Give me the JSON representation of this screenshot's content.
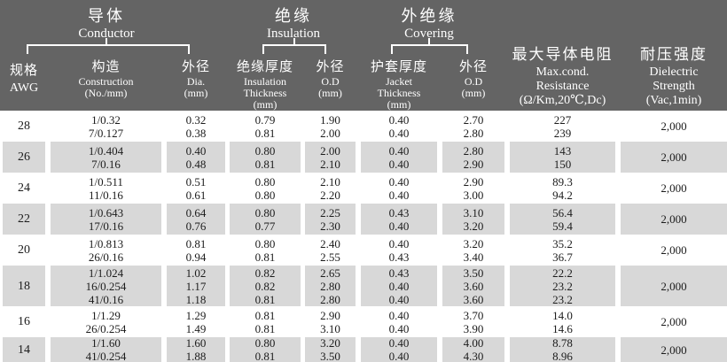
{
  "colors": {
    "header_bg": "#646464",
    "stripe_bg": "#d8d8d8",
    "header_text": "#ffffff",
    "body_text": "#1c1c1c"
  },
  "table": {
    "groups": [
      {
        "zh": "导体",
        "en": "Conductor"
      },
      {
        "zh": "绝缘",
        "en": "Insulation"
      },
      {
        "zh": "外绝缘",
        "en": "Covering"
      }
    ],
    "columns": [
      {
        "zh": "规格",
        "en": "AWG"
      },
      {
        "zh": "构造",
        "en": "Construction",
        "unit": "(No./mm)"
      },
      {
        "zh": "外径",
        "en": "Dia.",
        "unit": "(mm)"
      },
      {
        "zh": "绝缘厚度",
        "en": "Insulation",
        "en2": "Thickness",
        "unit": "(mm)"
      },
      {
        "zh": "外径",
        "en": "O.D",
        "unit": "(mm)"
      },
      {
        "zh": "护套厚度",
        "en": "Jacket",
        "en2": "Thickness",
        "unit": "(mm)"
      },
      {
        "zh": "外径",
        "en": "O.D",
        "unit": "(mm)"
      },
      {
        "zh": "最大导体电阻",
        "en": "Max.cond.",
        "en2": "Resistance",
        "unit": "(Ω/Km,20℃,Dc)"
      },
      {
        "zh": "耐压强度",
        "en": "Dielectric",
        "en2": "Strength",
        "unit": "(Vac,1min)"
      }
    ],
    "rows": [
      {
        "awg": "28",
        "construction": [
          "1/0.32",
          "7/0.127"
        ],
        "dia": [
          "0.32",
          "0.38"
        ],
        "ins_thickness": [
          "0.79",
          "0.81"
        ],
        "ins_od": [
          "1.90",
          "2.00"
        ],
        "jacket_thickness": [
          "0.40",
          "0.40"
        ],
        "jacket_od": [
          "2.70",
          "2.80"
        ],
        "resistance": [
          "227",
          "239"
        ],
        "dielectric": "2,000"
      },
      {
        "awg": "26",
        "construction": [
          "1/0.404",
          "7/0.16"
        ],
        "dia": [
          "0.40",
          "0.48"
        ],
        "ins_thickness": [
          "0.80",
          "0.81"
        ],
        "ins_od": [
          "2.00",
          "2.10"
        ],
        "jacket_thickness": [
          "0.40",
          "0.40"
        ],
        "jacket_od": [
          "2.80",
          "2.90"
        ],
        "resistance": [
          "143",
          "150"
        ],
        "dielectric": "2,000"
      },
      {
        "awg": "24",
        "construction": [
          "1/0.511",
          "11/0.16"
        ],
        "dia": [
          "0.51",
          "0.61"
        ],
        "ins_thickness": [
          "0.80",
          "0.80"
        ],
        "ins_od": [
          "2.10",
          "2.20"
        ],
        "jacket_thickness": [
          "0.40",
          "0.40"
        ],
        "jacket_od": [
          "2.90",
          "3.00"
        ],
        "resistance": [
          "89.3",
          "94.2"
        ],
        "dielectric": "2,000"
      },
      {
        "awg": "22",
        "construction": [
          "1/0.643",
          "17/0.16"
        ],
        "dia": [
          "0.64",
          "0.76"
        ],
        "ins_thickness": [
          "0.80",
          "0.77"
        ],
        "ins_od": [
          "2.25",
          "2.30"
        ],
        "jacket_thickness": [
          "0.43",
          "0.40"
        ],
        "jacket_od": [
          "3.10",
          "3.20"
        ],
        "resistance": [
          "56.4",
          "59.4"
        ],
        "dielectric": "2,000"
      },
      {
        "awg": "20",
        "construction": [
          "1/0.813",
          "26/0.16"
        ],
        "dia": [
          "0.81",
          "0.94"
        ],
        "ins_thickness": [
          "0.80",
          "0.81"
        ],
        "ins_od": [
          "2.40",
          "2.55"
        ],
        "jacket_thickness": [
          "0.40",
          "0.43"
        ],
        "jacket_od": [
          "3.20",
          "3.40"
        ],
        "resistance": [
          "35.2",
          "36.7"
        ],
        "dielectric": "2,000"
      },
      {
        "awg": "18",
        "construction": [
          "1/1.024",
          "16/0.254",
          "41/0.16"
        ],
        "dia": [
          "1.02",
          "1.17",
          "1.18"
        ],
        "ins_thickness": [
          "0.82",
          "0.82",
          "0.81"
        ],
        "ins_od": [
          "2.65",
          "2.80",
          "2.80"
        ],
        "jacket_thickness": [
          "0.43",
          "0.40",
          "0.40"
        ],
        "jacket_od": [
          "3.50",
          "3.60",
          "3.60"
        ],
        "resistance": [
          "22.2",
          "23.2",
          "23.2"
        ],
        "dielectric": "2,000"
      },
      {
        "awg": "16",
        "construction": [
          "1/1.29",
          "26/0.254"
        ],
        "dia": [
          "1.29",
          "1.49"
        ],
        "ins_thickness": [
          "0.81",
          "0.81"
        ],
        "ins_od": [
          "2.90",
          "3.10"
        ],
        "jacket_thickness": [
          "0.40",
          "0.40"
        ],
        "jacket_od": [
          "3.70",
          "3.90"
        ],
        "resistance": [
          "14.0",
          "14.6"
        ],
        "dielectric": "2,000"
      },
      {
        "awg": "14",
        "construction": [
          "1/1.60",
          "41/0.254"
        ],
        "dia": [
          "1.60",
          "1.88"
        ],
        "ins_thickness": [
          "0.80",
          "0.81"
        ],
        "ins_od": [
          "3.20",
          "3.50"
        ],
        "jacket_thickness": [
          "0.40",
          "0.40"
        ],
        "jacket_od": [
          "4.00",
          "4.30"
        ],
        "resistance": [
          "8.78",
          "8.96"
        ],
        "dielectric": "2,000"
      }
    ]
  }
}
